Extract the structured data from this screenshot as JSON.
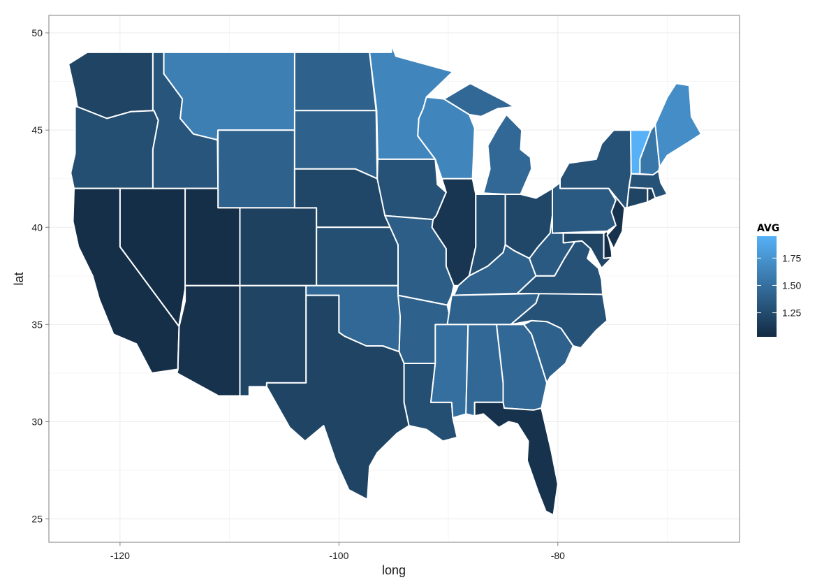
{
  "chart_data": {
    "type": "map",
    "xlabel": "long",
    "ylabel": "lat",
    "x_ticks": [
      "-120",
      "-100",
      "-80"
    ],
    "y_ticks": [
      "25",
      "30",
      "35",
      "40",
      "45",
      "50"
    ],
    "xlim": [
      -126.5,
      -63.4
    ],
    "ylim": [
      23.8,
      50.9
    ],
    "grid": true,
    "legend": {
      "title": "AVG",
      "position": "right",
      "range": [
        1.03,
        1.95
      ],
      "breaks": [
        "1.25",
        "1.50",
        "1.75"
      ],
      "color_low": "#132B43",
      "color_high": "#56B1F7"
    },
    "regions": [
      {
        "name": "Washington",
        "value": 1.2
      },
      {
        "name": "Oregon",
        "value": 1.27
      },
      {
        "name": "California",
        "value": 1.06
      },
      {
        "name": "Nevada",
        "value": 1.05
      },
      {
        "name": "Idaho",
        "value": 1.32
      },
      {
        "name": "Montana",
        "value": 1.6
      },
      {
        "name": "Wyoming",
        "value": 1.4
      },
      {
        "name": "Utah",
        "value": 1.06
      },
      {
        "name": "Colorado",
        "value": 1.18
      },
      {
        "name": "Arizona",
        "value": 1.08
      },
      {
        "name": "New Mexico",
        "value": 1.2
      },
      {
        "name": "North Dakota",
        "value": 1.4
      },
      {
        "name": "South Dakota",
        "value": 1.4
      },
      {
        "name": "Nebraska",
        "value": 1.22
      },
      {
        "name": "Kansas",
        "value": 1.27
      },
      {
        "name": "Oklahoma",
        "value": 1.45
      },
      {
        "name": "Texas",
        "value": 1.2
      },
      {
        "name": "Minnesota",
        "value": 1.65
      },
      {
        "name": "Iowa",
        "value": 1.3
      },
      {
        "name": "Missouri",
        "value": 1.38
      },
      {
        "name": "Arkansas",
        "value": 1.4
      },
      {
        "name": "Louisiana",
        "value": 1.27
      },
      {
        "name": "Wisconsin",
        "value": 1.65
      },
      {
        "name": "Illinois",
        "value": 1.1
      },
      {
        "name": "Michigan",
        "value": 1.45
      },
      {
        "name": "Indiana",
        "value": 1.27
      },
      {
        "name": "Ohio",
        "value": 1.22
      },
      {
        "name": "Kentucky",
        "value": 1.4
      },
      {
        "name": "Tennessee",
        "value": 1.4
      },
      {
        "name": "Mississippi",
        "value": 1.5
      },
      {
        "name": "Alabama",
        "value": 1.45
      },
      {
        "name": "Georgia",
        "value": 1.45
      },
      {
        "name": "Florida",
        "value": 1.08
      },
      {
        "name": "South Carolina",
        "value": 1.4
      },
      {
        "name": "North Carolina",
        "value": 1.3
      },
      {
        "name": "Virginia",
        "value": 1.3
      },
      {
        "name": "West Virginia",
        "value": 1.35
      },
      {
        "name": "Pennsylvania",
        "value": 1.35
      },
      {
        "name": "New York",
        "value": 1.3
      },
      {
        "name": "Vermont",
        "value": 1.95
      },
      {
        "name": "New Hampshire",
        "value": 1.55
      },
      {
        "name": "Maine",
        "value": 1.7
      },
      {
        "name": "Massachusetts",
        "value": 1.3
      },
      {
        "name": "Connecticut",
        "value": 1.2
      },
      {
        "name": "Rhode Island",
        "value": 1.15
      },
      {
        "name": "New Jersey",
        "value": 1.08
      },
      {
        "name": "Delaware",
        "value": 1.05
      },
      {
        "name": "Maryland",
        "value": 1.2
      }
    ]
  }
}
